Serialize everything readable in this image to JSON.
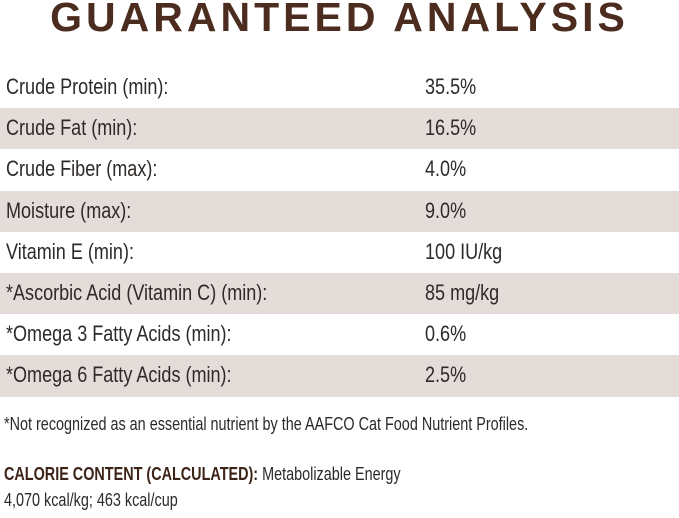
{
  "title": "GUARANTEED ANALYSIS",
  "rows": [
    {
      "label": "Crude Protein (min):",
      "value": "35.5%"
    },
    {
      "label": "Crude Fat (min):",
      "value": "16.5%"
    },
    {
      "label": "Crude Fiber (max):",
      "value": "4.0%"
    },
    {
      "label": "Moisture (max):",
      "value": "9.0%"
    },
    {
      "label": "Vitamin E (min):",
      "value": "100 IU/kg"
    },
    {
      "label": "*Ascorbic Acid (Vitamin C) (min):",
      "value": "85 mg/kg"
    },
    {
      "label": "*Omega 3 Fatty Acids (min):",
      "value": "0.6%"
    },
    {
      "label": "*Omega 6 Fatty Acids (min):",
      "value": "2.5%"
    }
  ],
  "footnote": "*Not recognized as an essential nutrient by the AAFCO Cat Food Nutrient Profiles.",
  "calorie": {
    "heading": "CALORIE CONTENT (CALCULATED):",
    "text": "Metabolizable Energy",
    "values": "4,070 kcal/kg; 463 kcal/cup"
  },
  "colors": {
    "title": "#4b2c1e",
    "shade": "#e4dcd8"
  }
}
